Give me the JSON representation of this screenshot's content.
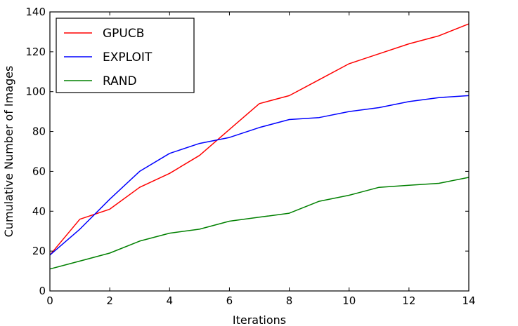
{
  "chart_data": {
    "type": "line",
    "title": "",
    "xlabel": "Iterations",
    "ylabel": "Cumulative Number of Images",
    "xlim": [
      0,
      14
    ],
    "ylim": [
      0,
      140
    ],
    "xticks": [
      0,
      2,
      4,
      6,
      8,
      10,
      12,
      14
    ],
    "yticks": [
      0,
      20,
      40,
      60,
      80,
      100,
      120,
      140
    ],
    "grid": false,
    "legend_position": "top-left",
    "x": [
      0,
      1,
      2,
      3,
      4,
      5,
      6,
      7,
      8,
      9,
      10,
      11,
      12,
      13,
      14
    ],
    "series": [
      {
        "name": "GPUCB",
        "color": "#ff0000",
        "values": [
          18,
          36,
          41,
          52,
          59,
          68,
          81,
          94,
          98,
          106,
          114,
          119,
          124,
          128,
          134
        ]
      },
      {
        "name": "EXPLOIT",
        "color": "#0000ff",
        "values": [
          18,
          31,
          46,
          60,
          69,
          74,
          77,
          82,
          86,
          87,
          90,
          92,
          95,
          97,
          98
        ]
      },
      {
        "name": "RAND",
        "color": "#008000",
        "values": [
          11,
          15,
          19,
          25,
          29,
          31,
          35,
          37,
          39,
          45,
          48,
          52,
          53,
          54,
          57
        ]
      }
    ]
  }
}
